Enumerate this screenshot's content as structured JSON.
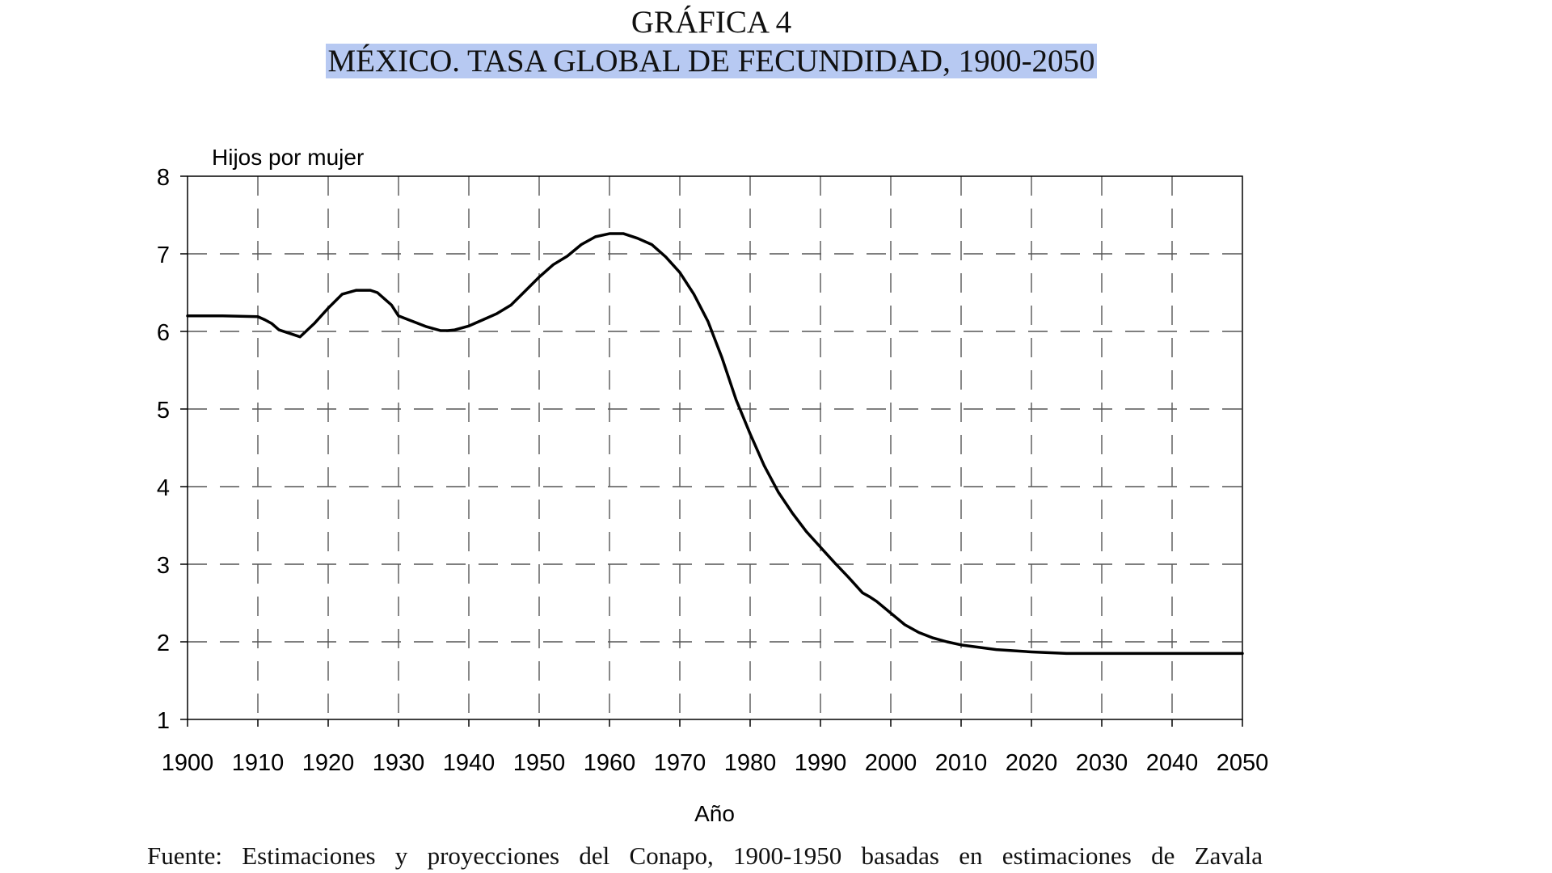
{
  "heading": {
    "label": "GRÁFICA 4",
    "title": "MÉXICO. TASA GLOBAL DE FECUNDIDAD, 1900-2050",
    "title_highlight_color": "#b7c9f2"
  },
  "source_note": "Fuente: Estimaciones y proyecciones del Conapo, 1900-1950 basadas en estimaciones de Zavala",
  "chart_data": {
    "type": "line",
    "ylabel": "Hijos por mujer",
    "xlabel": "Año",
    "xlim": [
      1900,
      2050
    ],
    "ylim": [
      1,
      8
    ],
    "xticks": [
      1900,
      1910,
      1920,
      1930,
      1940,
      1950,
      1960,
      1970,
      1980,
      1990,
      2000,
      2010,
      2020,
      2030,
      2040,
      2050
    ],
    "yticks": [
      1,
      2,
      3,
      4,
      5,
      6,
      7,
      8
    ],
    "grid": "dashed",
    "line_color": "#000000",
    "series": [
      {
        "x": [
          1900,
          1905,
          1910,
          1911,
          1912,
          1913,
          1914,
          1916,
          1918,
          1920,
          1922,
          1924,
          1926,
          1927,
          1928,
          1929,
          1930,
          1932,
          1934,
          1936,
          1937,
          1938,
          1940,
          1942,
          1944,
          1946,
          1948,
          1950,
          1952,
          1954,
          1956,
          1958,
          1960,
          1962,
          1964,
          1966,
          1968,
          1970,
          1972,
          1974,
          1976,
          1978,
          1980,
          1982,
          1984,
          1986,
          1988,
          1990,
          1992,
          1994,
          1996,
          1997,
          1998,
          2000,
          2002,
          2004,
          2006,
          2008,
          2010,
          2015,
          2020,
          2025,
          2030,
          2040,
          2050
        ],
        "y": [
          6.2,
          6.2,
          6.19,
          6.15,
          6.1,
          6.02,
          5.99,
          5.93,
          6.1,
          6.3,
          6.48,
          6.53,
          6.53,
          6.5,
          6.42,
          6.34,
          6.2,
          6.13,
          6.06,
          6.01,
          6.01,
          6.02,
          6.07,
          6.15,
          6.23,
          6.34,
          6.52,
          6.7,
          6.86,
          6.97,
          7.12,
          7.22,
          7.26,
          7.26,
          7.2,
          7.12,
          6.96,
          6.76,
          6.48,
          6.13,
          5.66,
          5.12,
          4.68,
          4.27,
          3.93,
          3.66,
          3.42,
          3.22,
          3.02,
          2.83,
          2.63,
          2.58,
          2.52,
          2.37,
          2.22,
          2.12,
          2.05,
          2.0,
          1.96,
          1.9,
          1.87,
          1.85,
          1.85,
          1.85,
          1.85
        ]
      }
    ]
  }
}
